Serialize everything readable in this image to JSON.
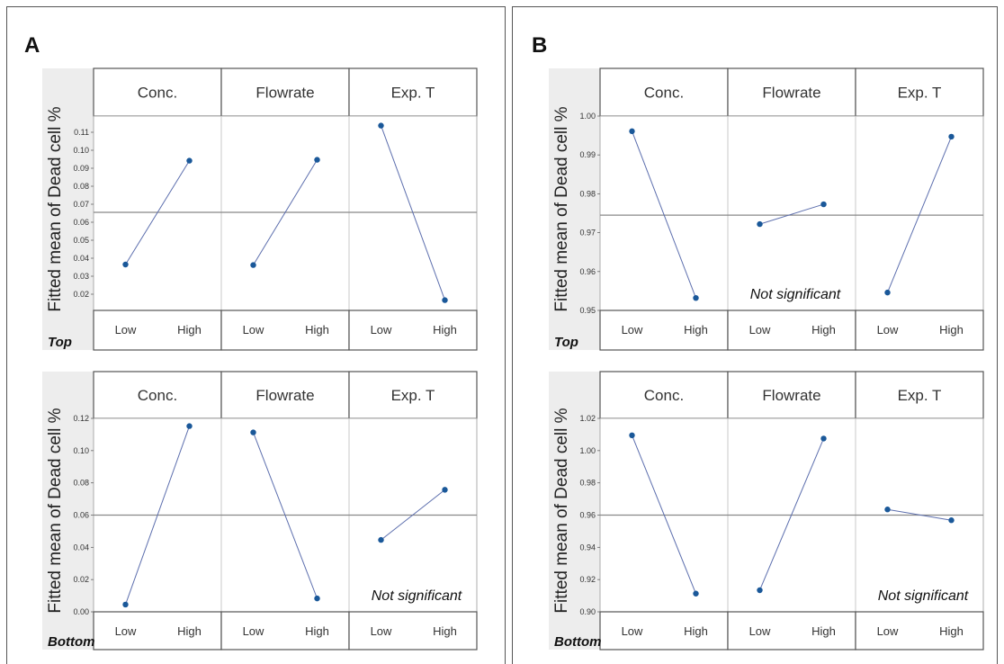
{
  "chart_data": [
    {
      "type": "line",
      "panel": "A",
      "position": "Top",
      "ylabel": "Fitted mean of Dead cell %",
      "yticks": [
        "0.02",
        "0.03",
        "0.04",
        "0.05",
        "0.06",
        "0.07",
        "0.08",
        "0.09",
        "0.10",
        "0.11"
      ],
      "ylim": [
        0.011,
        0.119
      ],
      "mean_line": 0.0655,
      "factors": [
        {
          "name": "Conc.",
          "levels": [
            "Low",
            "High"
          ],
          "values": [
            0.0365,
            0.0942
          ]
        },
        {
          "name": "Flowrate",
          "levels": [
            "Low",
            "High"
          ],
          "values": [
            0.0362,
            0.0947
          ]
        },
        {
          "name": "Exp. T",
          "levels": [
            "Low",
            "High"
          ],
          "values": [
            0.1137,
            0.0167
          ]
        }
      ],
      "annotation": ""
    },
    {
      "type": "line",
      "panel": "A",
      "position": "Bottom",
      "ylabel": "Fitted mean of Dead cell %",
      "yticks": [
        "0.00",
        "0.02",
        "0.04",
        "0.06",
        "0.08",
        "0.10",
        "0.12"
      ],
      "ylim": [
        0.0,
        0.12
      ],
      "mean_line": 0.06,
      "factors": [
        {
          "name": "Conc.",
          "levels": [
            "Low",
            "High"
          ],
          "values": [
            0.0045,
            0.1152
          ]
        },
        {
          "name": "Flowrate",
          "levels": [
            "Low",
            "High"
          ],
          "values": [
            0.1113,
            0.0083
          ]
        },
        {
          "name": "Exp. T",
          "levels": [
            "Low",
            "High"
          ],
          "values": [
            0.0446,
            0.0757
          ]
        }
      ],
      "annotation": "Not significant"
    },
    {
      "type": "line",
      "panel": "B",
      "position": "Top",
      "ylabel": "Fitted mean of Dead cell %",
      "yticks": [
        "0.95",
        "0.96",
        "0.97",
        "0.98",
        "0.99",
        "1.00"
      ],
      "ylim": [
        0.95,
        1.0
      ],
      "mean_line": 0.9745,
      "factors": [
        {
          "name": "Conc.",
          "levels": [
            "Low",
            "High"
          ],
          "values": [
            0.9961,
            0.9532
          ]
        },
        {
          "name": "Flowrate",
          "levels": [
            "Low",
            "High"
          ],
          "values": [
            0.9722,
            0.9773
          ]
        },
        {
          "name": "Exp. T",
          "levels": [
            "Low",
            "High"
          ],
          "values": [
            0.9546,
            0.9947
          ]
        }
      ],
      "annotation": "Not significant",
      "annotation_factor": "Flowrate"
    },
    {
      "type": "line",
      "panel": "B",
      "position": "Bottom",
      "ylabel": "Fitted mean of Dead cell %",
      "yticks": [
        "0.90",
        "0.92",
        "0.94",
        "0.96",
        "0.98",
        "1.00",
        "1.02"
      ],
      "ylim": [
        0.9,
        1.02
      ],
      "mean_line": 0.96,
      "factors": [
        {
          "name": "Conc.",
          "levels": [
            "Low",
            "High"
          ],
          "values": [
            1.0095,
            0.9113
          ]
        },
        {
          "name": "Flowrate",
          "levels": [
            "Low",
            "High"
          ],
          "values": [
            0.9134,
            1.0075
          ]
        },
        {
          "name": "Exp. T",
          "levels": [
            "Low",
            "High"
          ],
          "values": [
            0.9635,
            0.9568
          ]
        }
      ],
      "annotation": "Not significant",
      "annotation_factor": "Exp. T"
    }
  ],
  "colors": {
    "line": "#5d6fae",
    "marker": "#1a5899",
    "mean_line": "#888888",
    "grid": "#c8c8c8",
    "strip_border": "#555555"
  }
}
